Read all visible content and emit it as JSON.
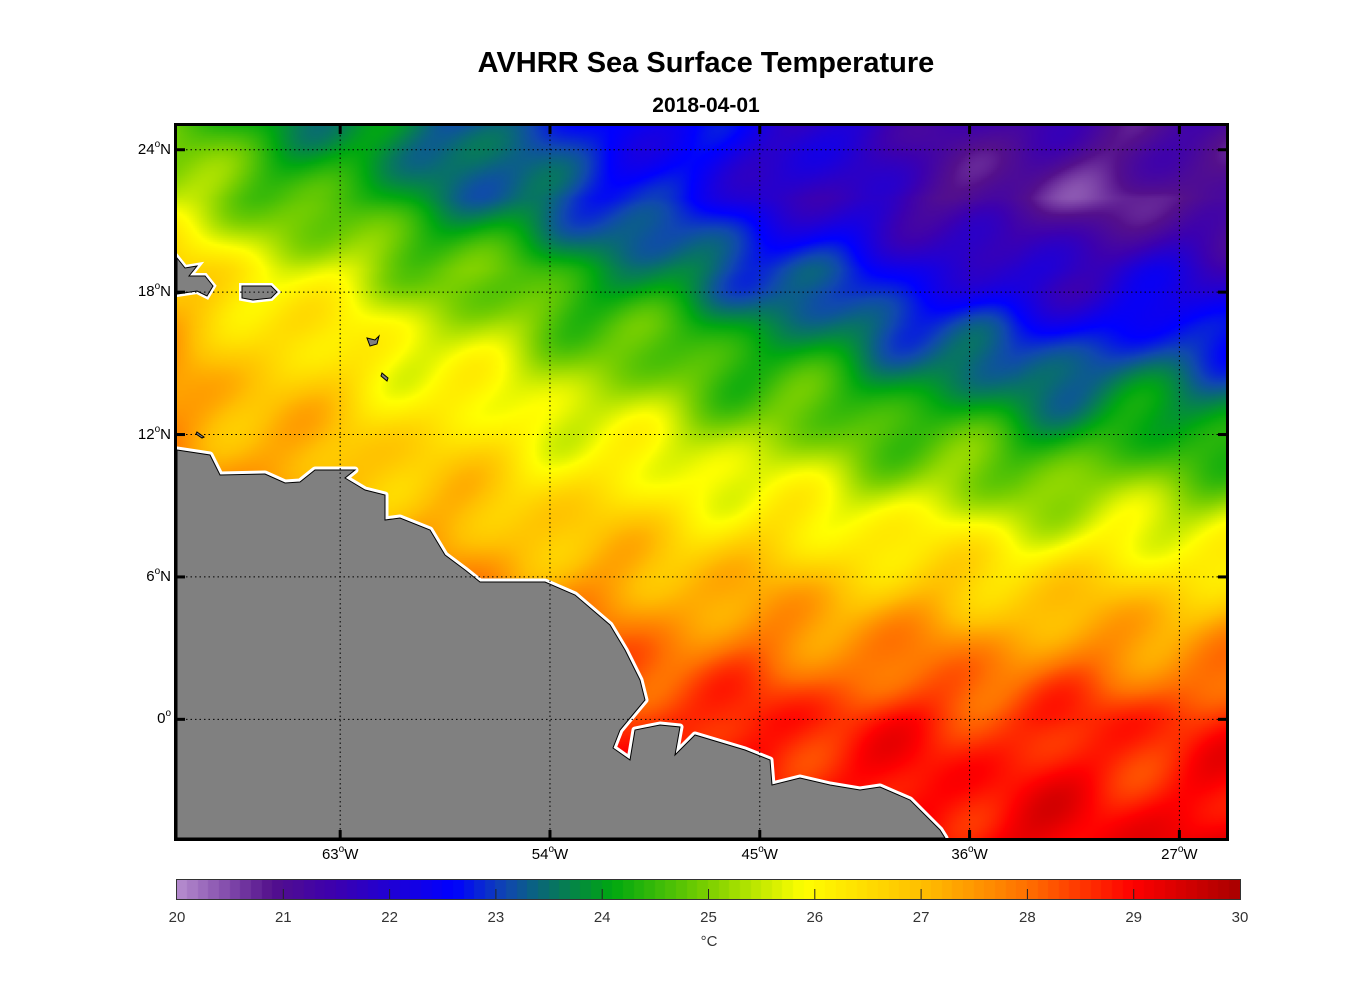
{
  "chart_data": {
    "type": "heatmap",
    "title": "AVHRR Sea Surface Temperature",
    "subtitle": "2018-04-01",
    "degree_mark": "o",
    "lon_range": [
      -70,
      -25
    ],
    "lat_range": [
      -5,
      25
    ],
    "lon_ticks": [
      {
        "value": -63,
        "num": "63",
        "hemi": "W"
      },
      {
        "value": -54,
        "num": "54",
        "hemi": "W"
      },
      {
        "value": -45,
        "num": "45",
        "hemi": "W"
      },
      {
        "value": -36,
        "num": "36",
        "hemi": "W"
      },
      {
        "value": -27,
        "num": "27",
        "hemi": "W"
      }
    ],
    "lat_ticks": [
      {
        "value": 24,
        "num": "24",
        "hemi": "N"
      },
      {
        "value": 18,
        "num": "18",
        "hemi": "N"
      },
      {
        "value": 12,
        "num": "12",
        "hemi": "N"
      },
      {
        "value": 6,
        "num": "6",
        "hemi": "N"
      },
      {
        "value": 0,
        "num": "0",
        "hemi": ""
      }
    ],
    "grid": "dotted",
    "colorbar": {
      "range": [
        20,
        30
      ],
      "ticks": [
        "20",
        "21",
        "22",
        "23",
        "24",
        "25",
        "26",
        "27",
        "28",
        "29",
        "30"
      ],
      "label": "°C",
      "placement": "bottom",
      "colormap": [
        [
          20,
          "#b890d0"
        ],
        [
          20.9,
          "#54108c"
        ],
        [
          21.5,
          "#3c00b0"
        ],
        [
          22.6,
          "#0000ff"
        ],
        [
          23.1,
          "#1048b0"
        ],
        [
          23.5,
          "#08706a"
        ],
        [
          24.1,
          "#00a810"
        ],
        [
          25,
          "#7cd000"
        ],
        [
          25.9,
          "#ffff00"
        ],
        [
          27,
          "#ffc000"
        ],
        [
          28,
          "#ff7000"
        ],
        [
          29,
          "#ff0000"
        ],
        [
          30,
          "#a80000"
        ]
      ]
    },
    "colors": {
      "land": "#808080",
      "coast": "#000000",
      "land_edge": "#ffffff"
    }
  }
}
